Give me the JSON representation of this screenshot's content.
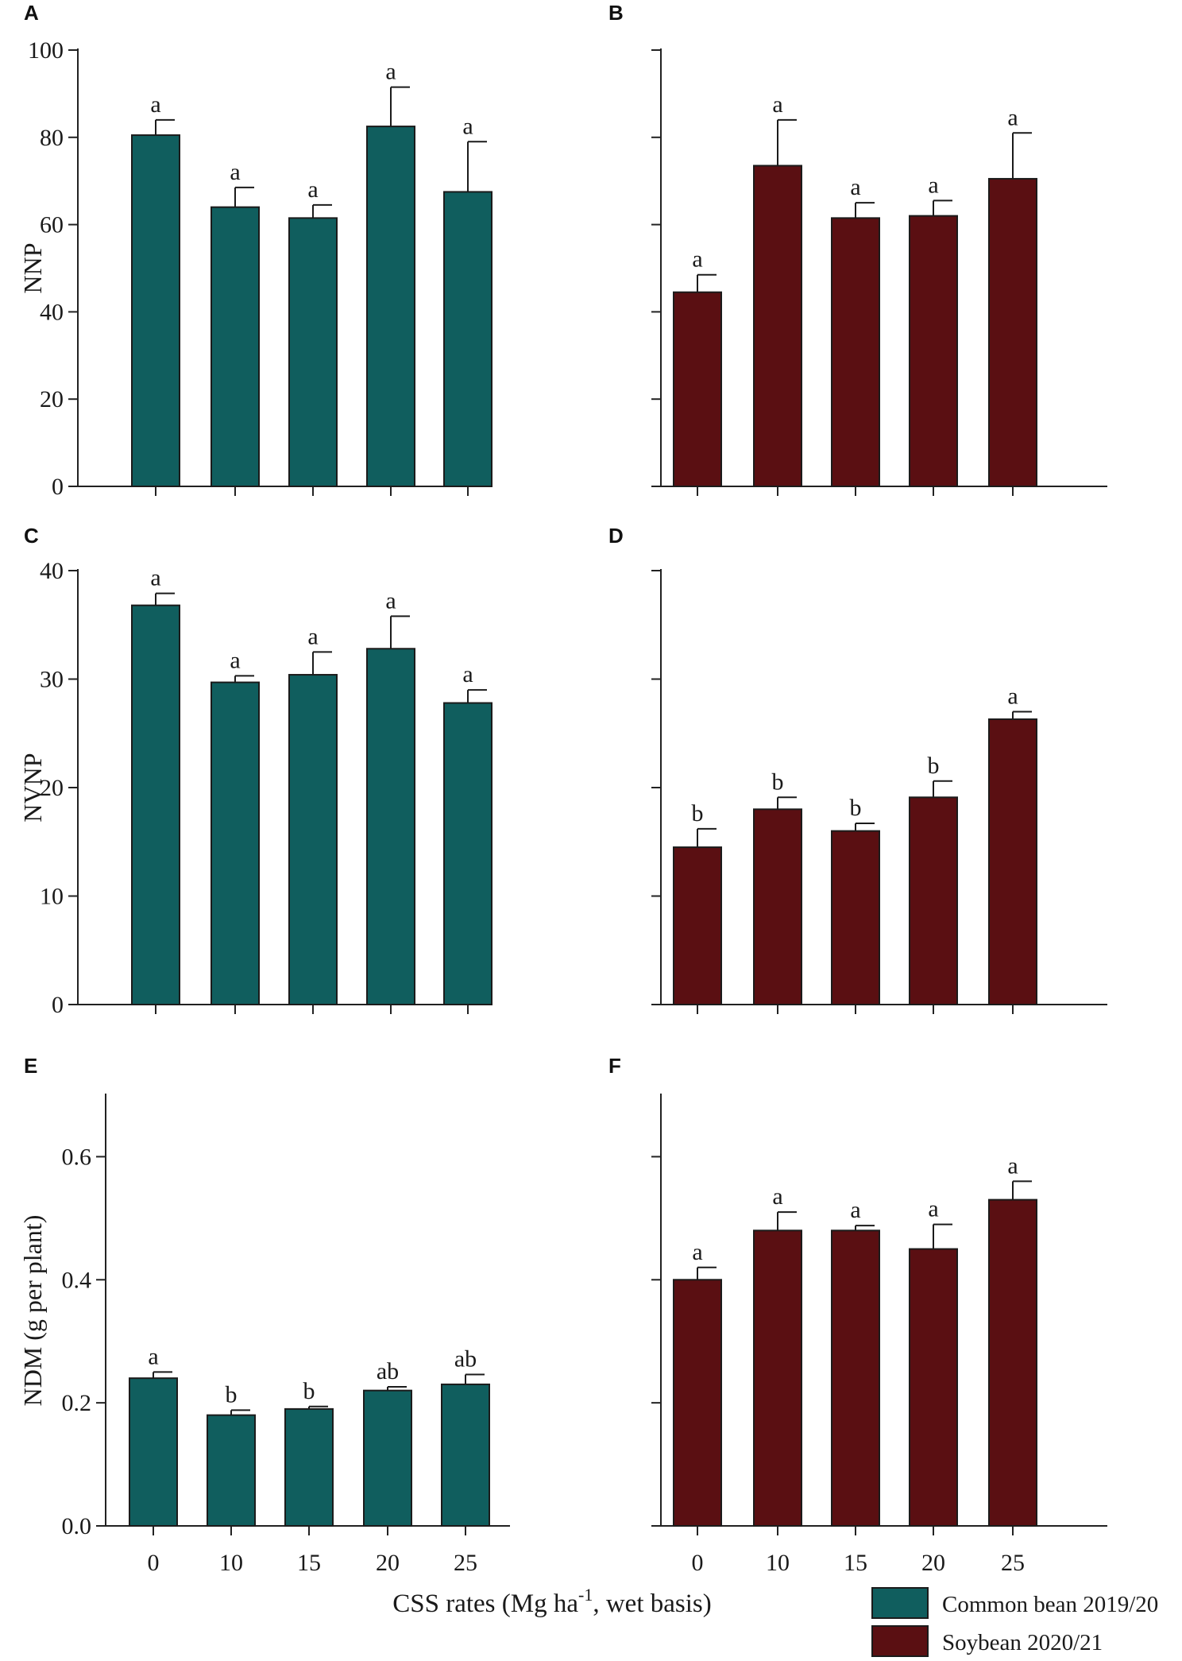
{
  "figure": {
    "xlabel_main": "CSS rates (Mg ha",
    "xlabel_sup": "-1",
    "xlabel_tail": ", wet basis)",
    "categories": [
      "0",
      "10",
      "15",
      "20",
      "25"
    ]
  },
  "legend": [
    {
      "label": "Common bean 2019/20",
      "color": "#105e5e"
    },
    {
      "label": "Soybean 2020/21",
      "color": "#5a0f12"
    }
  ],
  "chart_data": [
    {
      "panel": "A",
      "type": "bar",
      "crop": "Common bean 2019/20",
      "color": "#105e5e",
      "ylabel": "NNP",
      "ylim": [
        0,
        100
      ],
      "yticks": [
        0,
        20,
        40,
        60,
        80,
        100
      ],
      "show_ytick_labels": true,
      "categories": [
        "0",
        "10",
        "15",
        "20",
        "25"
      ],
      "values": [
        80.5,
        64,
        61.5,
        82.5,
        67.5
      ],
      "errors": [
        3.5,
        4.5,
        3,
        9,
        11.5
      ],
      "letters": [
        "a",
        "a",
        "a",
        "a",
        "a"
      ]
    },
    {
      "panel": "B",
      "type": "bar",
      "crop": "Soybean 2020/21",
      "color": "#5a0f12",
      "ylabel": "",
      "ylim": [
        0,
        100
      ],
      "yticks": [
        0,
        20,
        40,
        60,
        80,
        100
      ],
      "show_ytick_labels": false,
      "categories": [
        "0",
        "10",
        "15",
        "20",
        "25"
      ],
      "values": [
        44.5,
        73.5,
        61.5,
        62,
        70.5
      ],
      "errors": [
        4,
        10.5,
        3.5,
        3.5,
        10.5
      ],
      "letters": [
        "a",
        "a",
        "a",
        "a",
        "a"
      ]
    },
    {
      "panel": "C",
      "type": "bar",
      "crop": "Common bean 2019/20",
      "color": "#105e5e",
      "ylabel": "NVNP",
      "ylim": [
        0,
        40
      ],
      "yticks": [
        0,
        10,
        20,
        30,
        40
      ],
      "show_ytick_labels": true,
      "categories": [
        "0",
        "10",
        "15",
        "20",
        "25"
      ],
      "values": [
        36.8,
        29.7,
        30.4,
        32.8,
        27.8
      ],
      "errors": [
        1.1,
        0.6,
        2.1,
        3.0,
        1.2
      ],
      "letters": [
        "a",
        "a",
        "a",
        "a",
        "a"
      ]
    },
    {
      "panel": "D",
      "type": "bar",
      "crop": "Soybean 2020/21",
      "color": "#5a0f12",
      "ylabel": "",
      "ylim": [
        0,
        40
      ],
      "yticks": [
        0,
        10,
        20,
        30,
        40
      ],
      "show_ytick_labels": false,
      "categories": [
        "0",
        "10",
        "15",
        "20",
        "25"
      ],
      "values": [
        14.5,
        18,
        16,
        19.1,
        26.3
      ],
      "errors": [
        1.7,
        1.1,
        0.7,
        1.5,
        0.7
      ],
      "letters": [
        "b",
        "b",
        "b",
        "b",
        "a"
      ]
    },
    {
      "panel": "E",
      "type": "bar",
      "crop": "Common bean 2019/20",
      "color": "#105e5e",
      "ylabel": "NDM (g per plant)",
      "ylim": [
        0,
        0.7
      ],
      "yticks": [
        0.0,
        0.2,
        0.4,
        0.6
      ],
      "show_ytick_labels": true,
      "ytick_labels": [
        "0.0",
        "0.2",
        "0.4",
        "0.6"
      ],
      "categories": [
        "0",
        "10",
        "15",
        "20",
        "25"
      ],
      "values": [
        0.24,
        0.18,
        0.19,
        0.22,
        0.23
      ],
      "errors": [
        0.01,
        0.008,
        0.004,
        0.006,
        0.016
      ],
      "letters": [
        "a",
        "b",
        "b",
        "ab",
        "ab"
      ]
    },
    {
      "panel": "F",
      "type": "bar",
      "crop": "Soybean 2020/21",
      "color": "#5a0f12",
      "ylabel": "",
      "ylim": [
        0,
        0.7
      ],
      "yticks": [
        0.0,
        0.2,
        0.4,
        0.6
      ],
      "show_ytick_labels": false,
      "categories": [
        "0",
        "10",
        "15",
        "20",
        "25"
      ],
      "values": [
        0.4,
        0.48,
        0.48,
        0.45,
        0.53
      ],
      "errors": [
        0.02,
        0.03,
        0.008,
        0.04,
        0.03
      ],
      "letters": [
        "a",
        "a",
        "a",
        "a",
        "a"
      ]
    }
  ]
}
